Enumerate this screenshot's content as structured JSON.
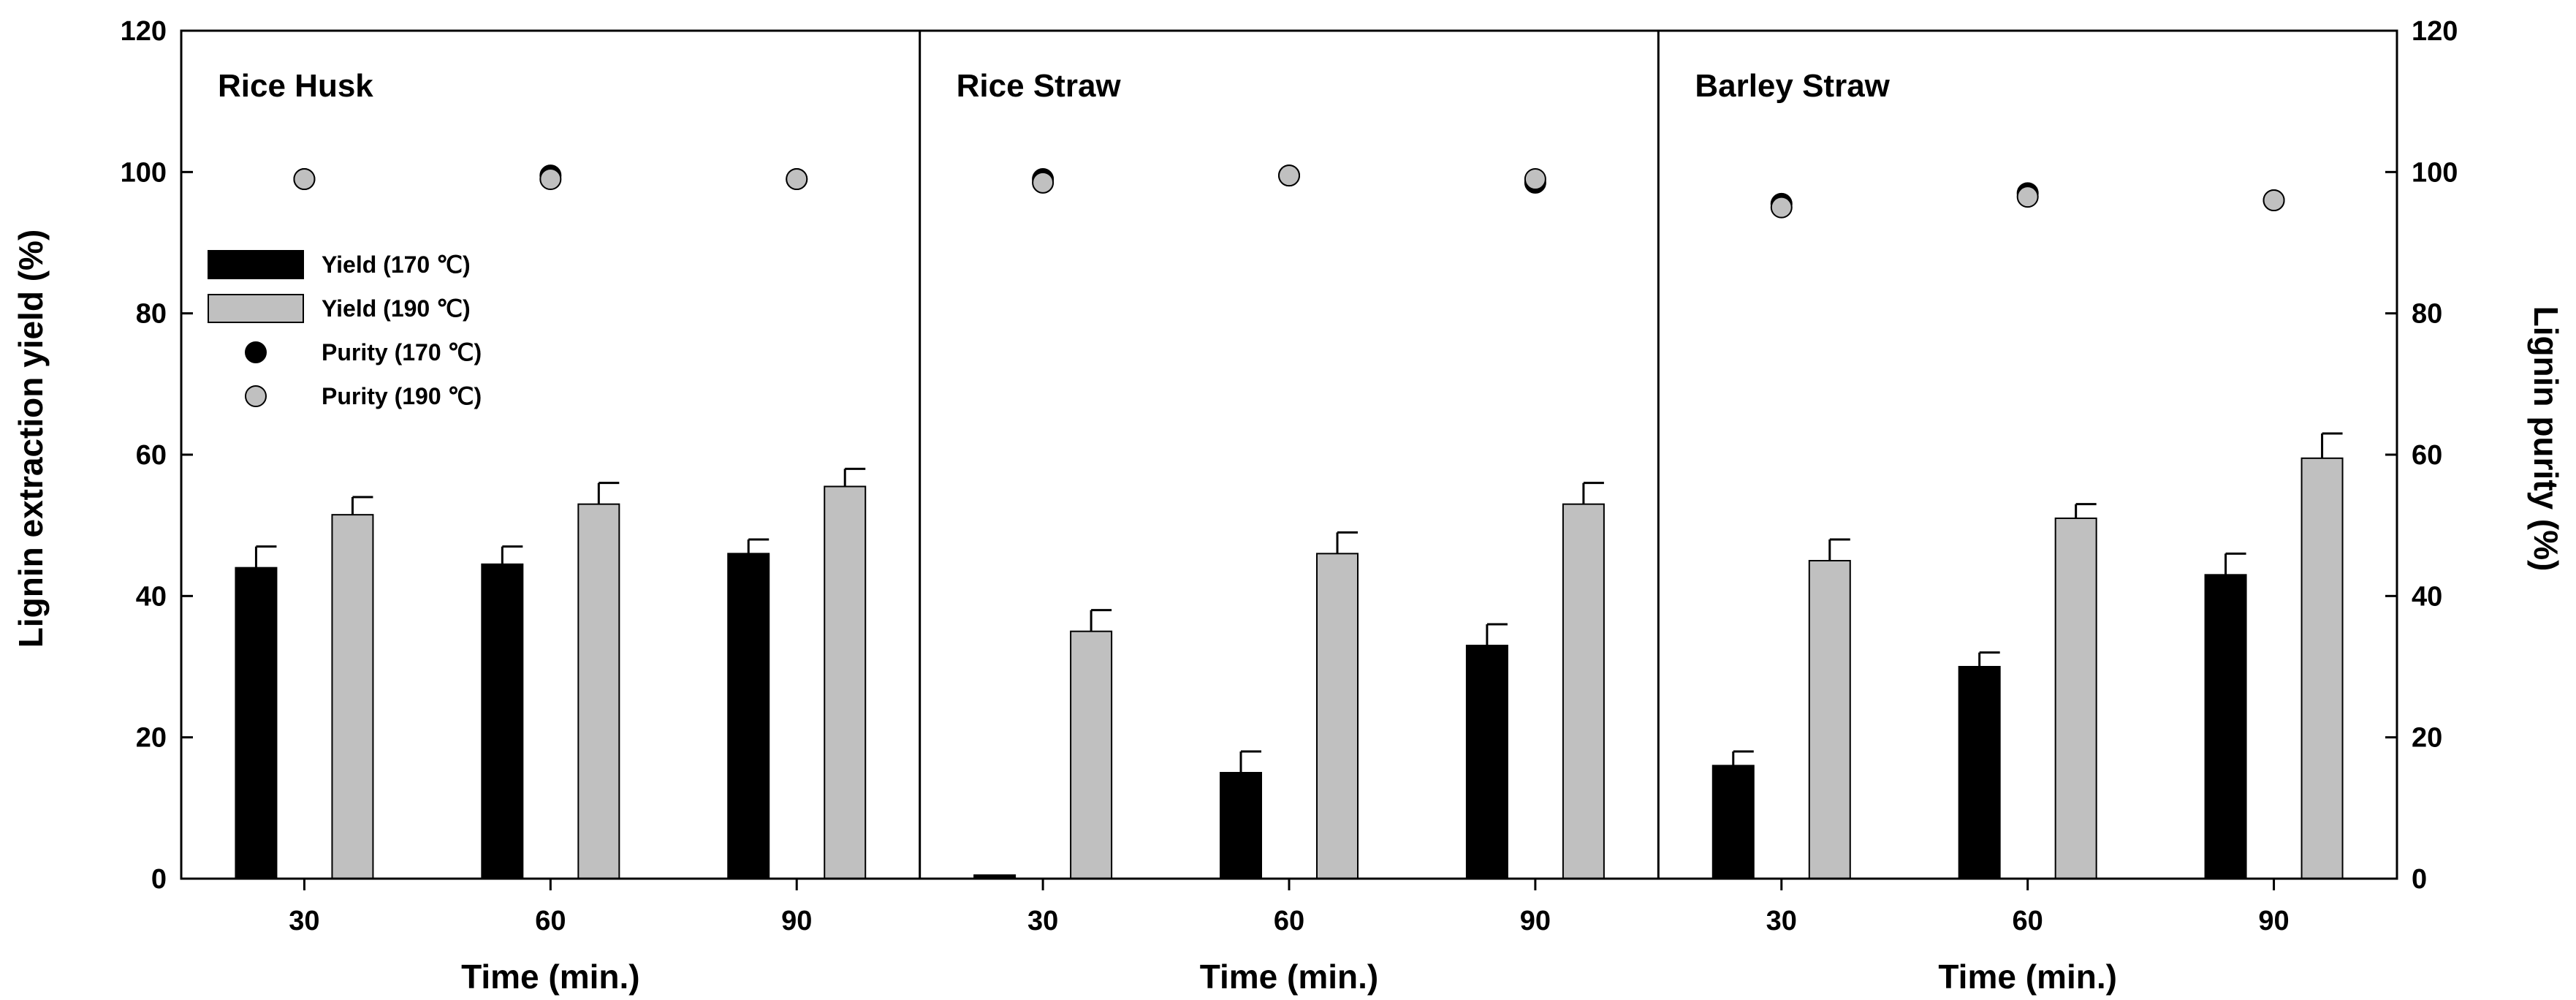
{
  "chart_data": {
    "type": "bar",
    "y_left_label": "Lignin extraction yield (%)",
    "y_right_label": "Lignin purity (%)",
    "ylim": [
      0,
      120
    ],
    "yticks": [
      "0",
      "20",
      "40",
      "60",
      "80",
      "100",
      "120"
    ],
    "legend": {
      "placement": "upper-left of first panel",
      "items": [
        {
          "label": "Yield (170 ℃)",
          "kind": "bar",
          "color": "#000000"
        },
        {
          "label": "Yield (190 ℃)",
          "kind": "bar",
          "color": "#c0c0c0"
        },
        {
          "label": "Purity (170 ℃)",
          "kind": "marker",
          "color": "#000000"
        },
        {
          "label": "Purity (190 ℃)",
          "kind": "marker",
          "color": "#c0c0c0"
        }
      ]
    },
    "colors": {
      "bar_170": "#000000",
      "bar_190": "#c0c0c0",
      "edge": "#000000",
      "marker_170": "#000000",
      "marker_190": "#c0c0c0"
    },
    "panels": [
      {
        "title": "Rice Husk",
        "xlabel": "Time (min.)",
        "categories": [
          "30",
          "60",
          "90"
        ],
        "series": [
          {
            "name": "Yield (170 ℃)",
            "values": [
              44,
              44.5,
              46
            ],
            "errors": [
              3,
              2.5,
              2
            ]
          },
          {
            "name": "Yield (190 ℃)",
            "values": [
              51.5,
              53,
              55.5
            ],
            "errors": [
              2.5,
              3,
              2.5
            ]
          },
          {
            "name": "Purity (170 ℃)",
            "values": [
              99,
              99.5,
              99
            ]
          },
          {
            "name": "Purity (190 ℃)",
            "values": [
              99,
              99,
              99
            ]
          }
        ]
      },
      {
        "title": "Rice Straw",
        "xlabel": "Time (min.)",
        "categories": [
          "30",
          "60",
          "90"
        ],
        "series": [
          {
            "name": "Yield (170 ℃)",
            "values": [
              0.5,
              15,
              33
            ],
            "errors": [
              0,
              3,
              3
            ]
          },
          {
            "name": "Yield (190 ℃)",
            "values": [
              35,
              46,
              53
            ],
            "errors": [
              3,
              3,
              3
            ]
          },
          {
            "name": "Purity (170 ℃)",
            "values": [
              99,
              99.5,
              98.5
            ]
          },
          {
            "name": "Purity (190 ℃)",
            "values": [
              98.5,
              99.5,
              99
            ]
          }
        ]
      },
      {
        "title": "Barley Straw",
        "xlabel": "Time (min.)",
        "categories": [
          "30",
          "60",
          "90"
        ],
        "series": [
          {
            "name": "Yield (170 ℃)",
            "values": [
              16,
              30,
              43
            ],
            "errors": [
              2,
              2,
              3
            ]
          },
          {
            "name": "Yield (190 ℃)",
            "values": [
              45,
              51,
              59.5
            ],
            "errors": [
              3,
              2,
              3.5
            ]
          },
          {
            "name": "Purity (170 ℃)",
            "values": [
              95.5,
              97,
              96
            ]
          },
          {
            "name": "Purity (190 ℃)",
            "values": [
              95,
              96.5,
              96
            ]
          }
        ]
      }
    ]
  }
}
